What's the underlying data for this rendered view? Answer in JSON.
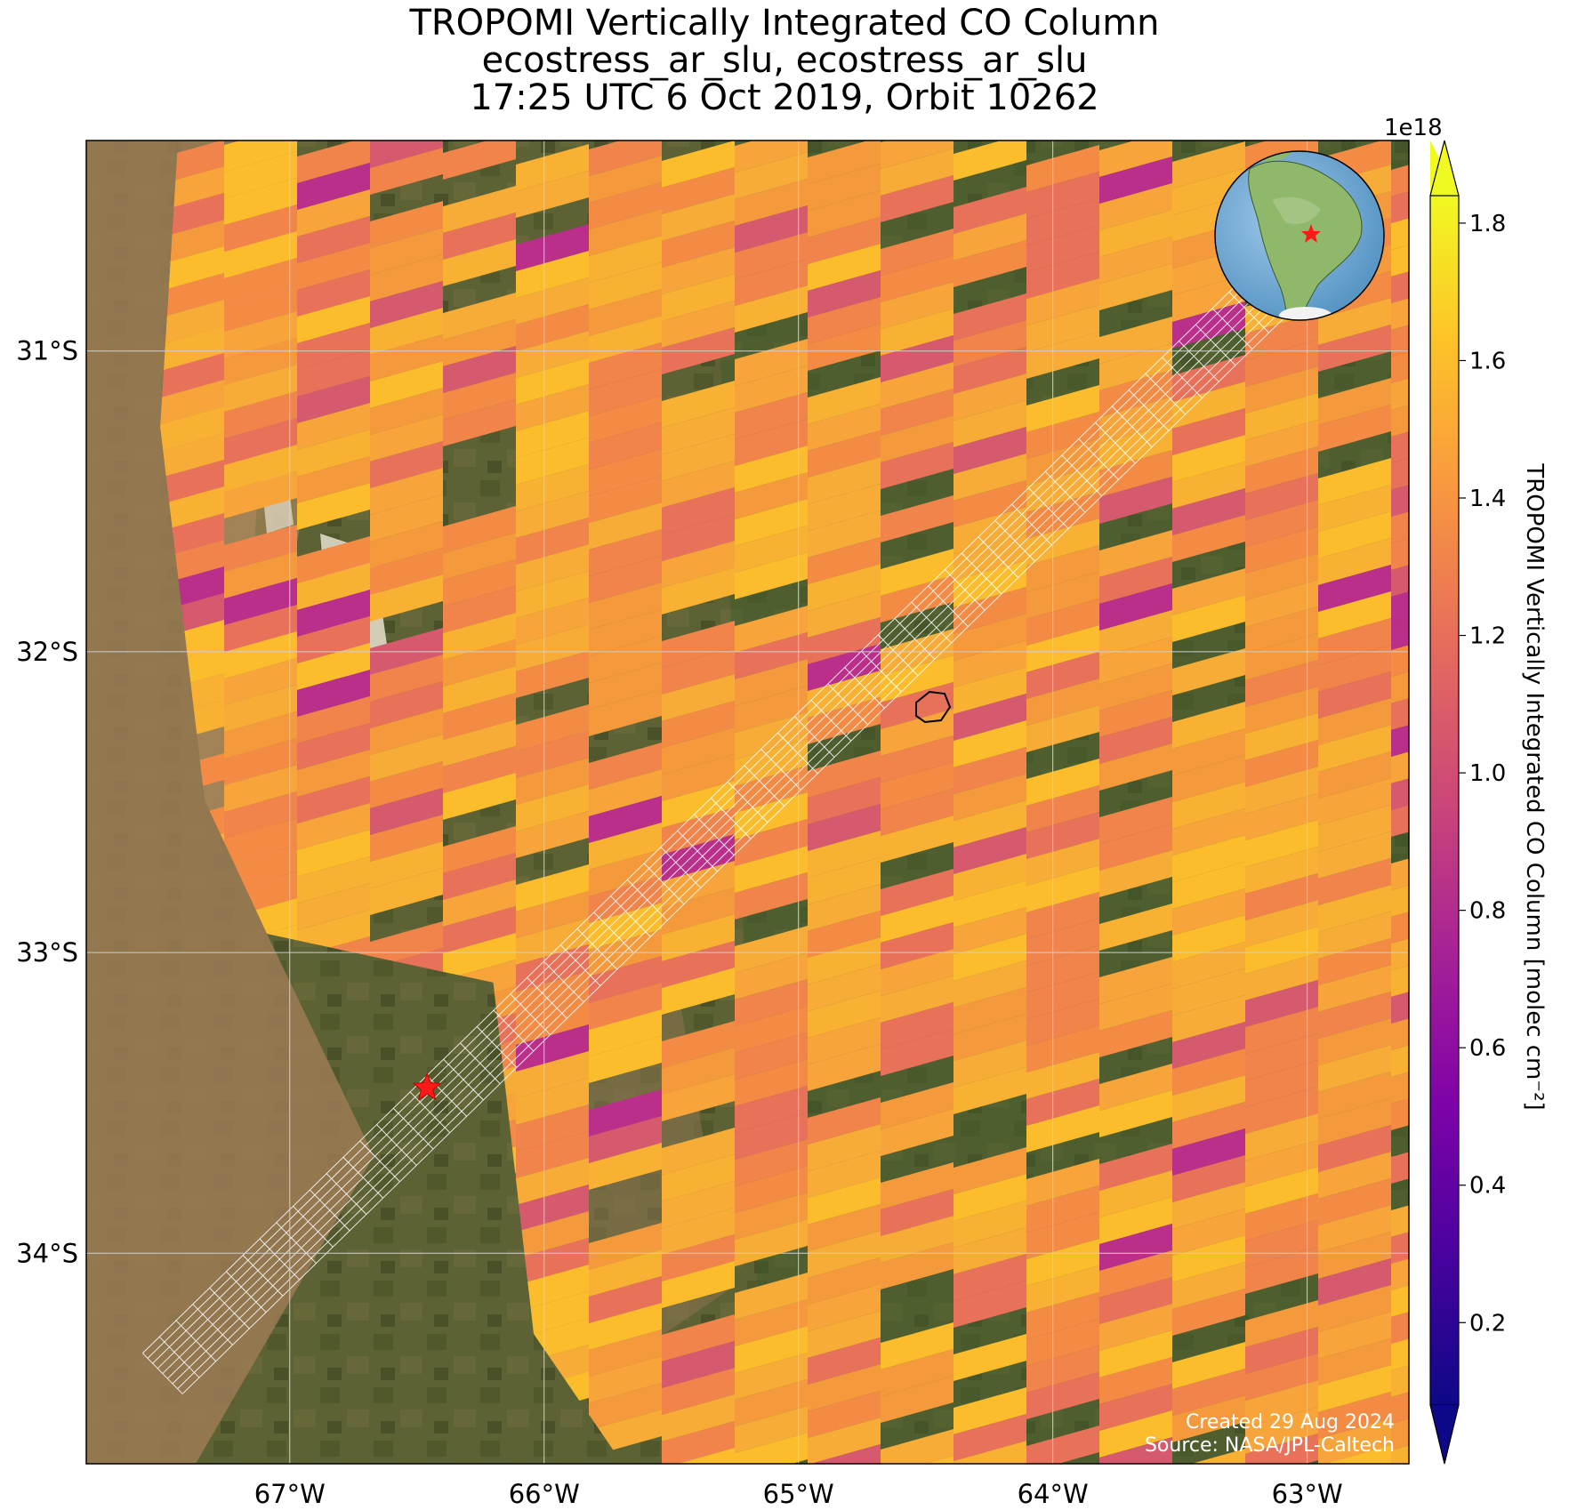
{
  "title": {
    "line1": "TROPOMI Vertically Integrated CO Column",
    "line2": "ecostress_ar_slu, ecostress_ar_slu",
    "line3": "17:25 UTC 6 Oct 2019, Orbit 10262"
  },
  "map": {
    "extent": {
      "lon_min": -67.8,
      "lon_max": -62.6,
      "lat_min": -34.7,
      "lat_max": -30.3
    },
    "lon_ticks": [
      {
        "value": -67,
        "label": "67°W"
      },
      {
        "value": -66,
        "label": "66°W"
      },
      {
        "value": -65,
        "label": "65°W"
      },
      {
        "value": -64,
        "label": "64°W"
      },
      {
        "value": -63,
        "label": "63°W"
      }
    ],
    "lat_ticks": [
      {
        "value": -31,
        "label": "31°S"
      },
      {
        "value": -32,
        "label": "32°S"
      },
      {
        "value": -33,
        "label": "33°S"
      },
      {
        "value": -34,
        "label": "34°S"
      }
    ],
    "gridlines": true,
    "target_marker": {
      "lon": -66.46,
      "lat": -33.45,
      "color": "#ff1a1a"
    },
    "inset_globe": {
      "position": "top-right",
      "marker_color": "#ff1a1a"
    },
    "credit": {
      "line1": "Created 29 Aug 2024",
      "line2": "Source: NASA/JPL-Caltech"
    }
  },
  "colorbar": {
    "label": "TROPOMI Vertically Integrated CO Column [molec cm⁻²]",
    "multiplier": "1e18",
    "colormap": "plasma",
    "vmin": 0.08,
    "vmax": 1.84,
    "ticks": [
      "0.2",
      "0.4",
      "0.6",
      "0.8",
      "1.0",
      "1.2",
      "1.4",
      "1.6",
      "1.8"
    ],
    "extend": "both"
  },
  "colors": {
    "plasma_0": "#0d0887",
    "plasma_1": "#6a00a8",
    "plasma_2": "#b12a90",
    "plasma_3": "#e16462",
    "plasma_4": "#fca636",
    "plasma_5": "#f0f921",
    "orange_main": "#f59a3c",
    "footprint_grid": "#ffffff"
  }
}
